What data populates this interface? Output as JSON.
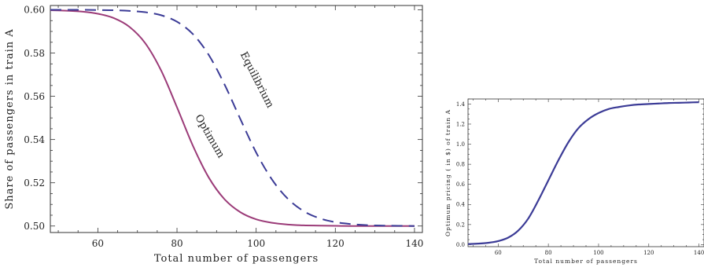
{
  "chart_data": [
    {
      "type": "line",
      "title": "",
      "xlabel": "Total number of passengers",
      "ylabel": "Share of passengers in train A",
      "xlim": [
        48,
        142
      ],
      "ylim": [
        0.497,
        0.602
      ],
      "xticks": [
        60,
        80,
        100,
        120,
        140
      ],
      "yticks": [
        0.5,
        0.52,
        0.54,
        0.56,
        0.58,
        0.6
      ],
      "grid": false,
      "series": [
        {
          "name": "Optimum",
          "color": "#9b3b78",
          "style": "solid",
          "x": [
            48,
            52,
            56,
            60,
            64,
            68,
            72,
            76,
            80,
            84,
            88,
            92,
            96,
            100,
            104,
            108,
            112,
            116,
            120,
            124,
            128,
            132,
            136,
            140
          ],
          "y": [
            0.5998,
            0.5996,
            0.5992,
            0.5982,
            0.5962,
            0.5921,
            0.5845,
            0.5719,
            0.5549,
            0.5372,
            0.5225,
            0.5124,
            0.5064,
            0.5031,
            0.5015,
            0.5007,
            0.5003,
            0.5002,
            0.5001,
            0.5,
            0.5,
            0.5,
            0.5,
            0.5
          ]
        },
        {
          "name": "Equilibrium",
          "color": "#3b3b96",
          "style": "dashed",
          "x": [
            48,
            52,
            56,
            60,
            64,
            68,
            72,
            76,
            80,
            84,
            88,
            92,
            96,
            100,
            104,
            108,
            112,
            116,
            120,
            124,
            128,
            132,
            136,
            140
          ],
          "y": [
            0.6,
            0.6,
            0.6,
            0.5999,
            0.5998,
            0.5995,
            0.5989,
            0.5975,
            0.5945,
            0.5888,
            0.5792,
            0.5655,
            0.5495,
            0.534,
            0.5215,
            0.5126,
            0.5069,
            0.5036,
            0.5018,
            0.5009,
            0.5004,
            0.5002,
            0.5001,
            0.5
          ]
        }
      ],
      "annotations": [
        "Equilibrium",
        "Optimum"
      ]
    },
    {
      "type": "line",
      "title": "",
      "xlabel": "Total number of passengers",
      "ylabel": "Optimum pricing ( in $) of train A",
      "xlim": [
        48,
        142
      ],
      "ylim": [
        -0.02,
        1.45
      ],
      "xticks": [
        60,
        80,
        100,
        120,
        140
      ],
      "yticks": [
        0.0,
        0.2,
        0.4,
        0.6,
        0.8,
        1.0,
        1.2,
        1.4
      ],
      "grid": false,
      "series": [
        {
          "color": "#3b3b96",
          "style": "solid",
          "x": [
            48,
            52,
            56,
            60,
            64,
            68,
            72,
            76,
            80,
            84,
            88,
            92,
            96,
            100,
            104,
            108,
            112,
            116,
            120,
            124,
            128,
            132,
            136,
            140
          ],
          "y": [
            0.006,
            0.01,
            0.018,
            0.035,
            0.07,
            0.14,
            0.26,
            0.44,
            0.64,
            0.84,
            1.02,
            1.16,
            1.25,
            1.31,
            1.35,
            1.37,
            1.385,
            1.395,
            1.4,
            1.405,
            1.41,
            1.412,
            1.415,
            1.418
          ]
        }
      ]
    }
  ]
}
